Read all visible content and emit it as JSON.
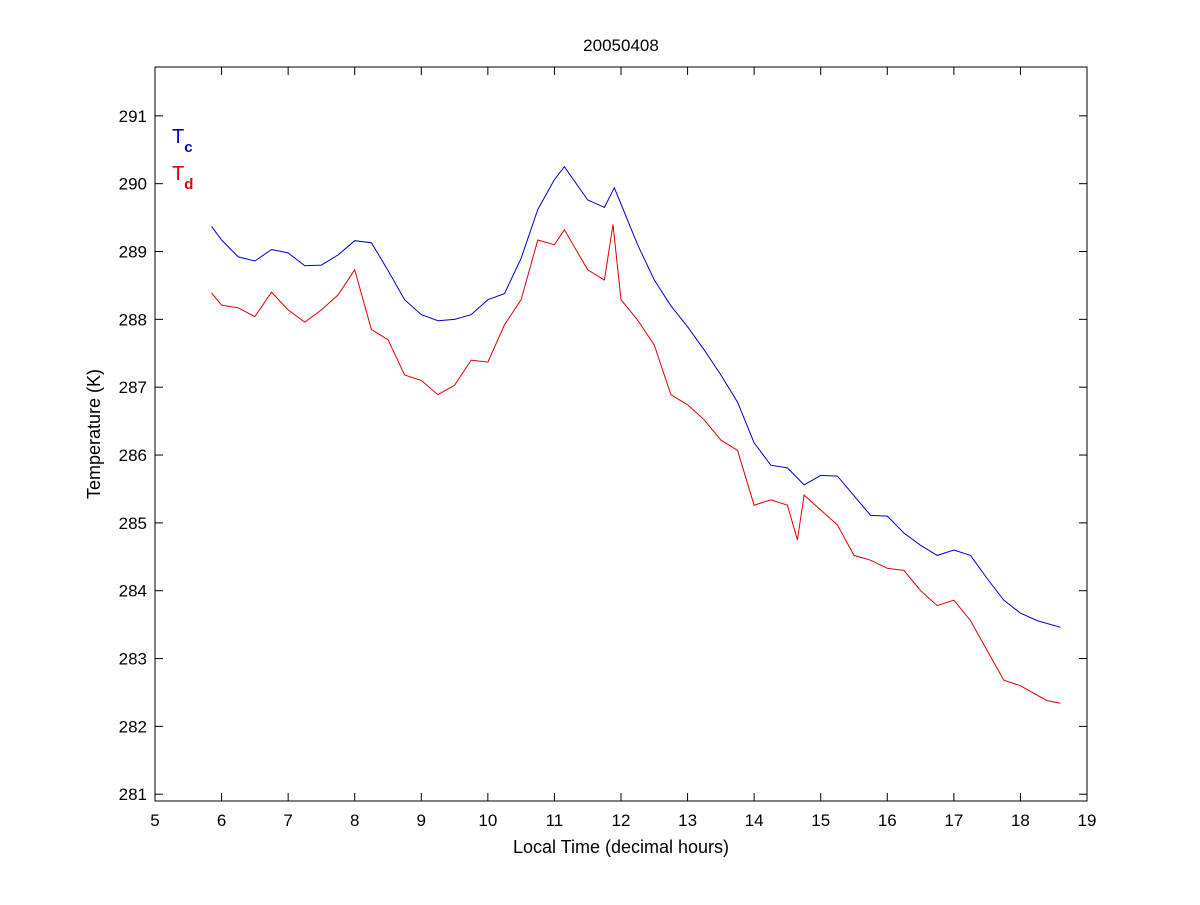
{
  "chart_data": {
    "type": "line",
    "title": "20050408",
    "xlabel": "Local Time (decimal hours)",
    "ylabel": "Temperature (K)",
    "xlim": [
      5,
      19
    ],
    "ylim": [
      280.9,
      291.72
    ],
    "xticks": [
      5,
      6,
      7,
      8,
      9,
      10,
      11,
      12,
      13,
      14,
      15,
      16,
      17,
      18,
      19
    ],
    "yticks": [
      281,
      282,
      283,
      284,
      285,
      286,
      287,
      288,
      289,
      290,
      291
    ],
    "grid": false,
    "legend_placement": "top-left",
    "series": [
      {
        "name": "Tc",
        "label_main": "T",
        "label_sub": "c",
        "color": "#0000cc",
        "x": [
          5.85,
          6.0,
          6.25,
          6.5,
          6.75,
          7.0,
          7.25,
          7.5,
          7.75,
          8.0,
          8.25,
          8.5,
          8.75,
          9.0,
          9.25,
          9.5,
          9.75,
          10.0,
          10.25,
          10.5,
          10.75,
          11.0,
          11.15,
          11.5,
          11.75,
          11.9,
          12.0,
          12.25,
          12.5,
          12.75,
          13.0,
          13.25,
          13.5,
          13.75,
          14.0,
          14.25,
          14.5,
          14.75,
          15.0,
          15.25,
          15.5,
          15.75,
          16.0,
          16.25,
          16.5,
          16.75,
          17.0,
          17.25,
          17.5,
          17.75,
          18.0,
          18.25,
          18.6
        ],
        "y": [
          289.37,
          289.17,
          288.92,
          288.86,
          289.03,
          288.98,
          288.79,
          288.8,
          288.95,
          289.16,
          289.13,
          288.72,
          288.29,
          288.07,
          287.98,
          288.0,
          288.07,
          288.29,
          288.38,
          288.9,
          289.62,
          290.06,
          290.25,
          289.76,
          289.65,
          289.94,
          289.7,
          289.1,
          288.58,
          288.2,
          287.89,
          287.55,
          287.18,
          286.78,
          286.18,
          285.85,
          285.81,
          285.56,
          285.7,
          285.69,
          285.4,
          285.11,
          285.1,
          284.85,
          284.67,
          284.52,
          284.6,
          284.52,
          284.18,
          283.86,
          283.67,
          283.56,
          283.46
        ]
      },
      {
        "name": "Td",
        "label_main": "T",
        "label_sub": "d",
        "color": "#dd0000",
        "x": [
          5.85,
          6.0,
          6.25,
          6.5,
          6.75,
          7.0,
          7.25,
          7.5,
          7.75,
          8.0,
          8.25,
          8.5,
          8.75,
          9.0,
          9.25,
          9.5,
          9.75,
          10.0,
          10.25,
          10.5,
          10.75,
          11.0,
          11.15,
          11.5,
          11.75,
          11.88,
          12.0,
          12.25,
          12.5,
          12.75,
          13.0,
          13.25,
          13.5,
          13.75,
          14.0,
          14.25,
          14.5,
          14.65,
          14.75,
          15.0,
          15.25,
          15.5,
          15.75,
          16.0,
          16.25,
          16.5,
          16.75,
          17.0,
          17.25,
          17.5,
          17.75,
          18.0,
          18.25,
          18.4,
          18.6
        ],
        "y": [
          288.39,
          288.21,
          288.17,
          288.04,
          288.4,
          288.14,
          287.96,
          288.14,
          288.36,
          288.73,
          287.85,
          287.7,
          287.18,
          287.1,
          286.89,
          287.03,
          287.4,
          287.37,
          287.92,
          288.29,
          289.17,
          289.1,
          289.32,
          288.73,
          288.58,
          289.4,
          288.29,
          287.99,
          287.62,
          286.89,
          286.74,
          286.52,
          286.22,
          286.07,
          285.26,
          285.34,
          285.26,
          284.75,
          285.41,
          285.19,
          284.97,
          284.52,
          284.45,
          284.33,
          284.3,
          284.0,
          283.78,
          283.86,
          283.56,
          283.12,
          282.68,
          282.6,
          282.46,
          282.38,
          282.34
        ]
      }
    ]
  }
}
